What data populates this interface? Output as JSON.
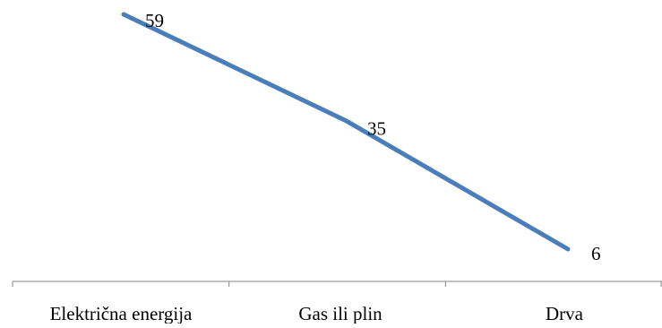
{
  "chart_data": {
    "type": "line",
    "categories": [
      "Električna energija",
      "Gas ili plin",
      "Drva"
    ],
    "series": [
      {
        "values": [
          59,
          35,
          6
        ],
        "color": "#4a7ebb"
      }
    ],
    "data_labels": [
      "59",
      "35",
      "6"
    ],
    "ylim": [
      0,
      60
    ],
    "grid": false,
    "legend": "none",
    "axis_color": "#868686"
  }
}
